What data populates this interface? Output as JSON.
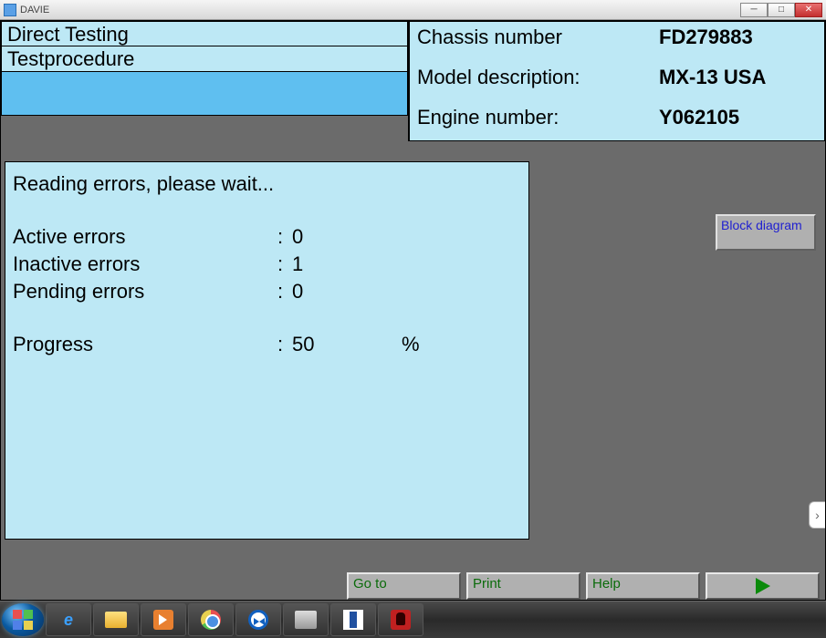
{
  "window": {
    "title": "DAVIE"
  },
  "header": {
    "left": {
      "line1": "Direct Testing",
      "line2": "Testprocedure"
    },
    "right": {
      "chassis_label": "Chassis number",
      "chassis_value": "FD279883",
      "model_label": "Model description:",
      "model_value": "MX-13 USA",
      "engine_label": "Engine number:",
      "engine_value": "Y062105"
    }
  },
  "status": {
    "heading": "Reading errors, please wait...",
    "rows": [
      {
        "label": "Active errors",
        "value": "0",
        "unit": ""
      },
      {
        "label": "Inactive errors",
        "value": "1",
        "unit": ""
      },
      {
        "label": "Pending errors",
        "value": "0",
        "unit": ""
      }
    ],
    "progress": {
      "label": "Progress",
      "value": "50",
      "unit": "%"
    }
  },
  "buttons": {
    "block_diagram": "Block diagram",
    "goto": "Go to",
    "print": "Print",
    "help": "Help"
  },
  "colors": {
    "panel_bg": "#bde8f5",
    "highlight_bg": "#5fbff0",
    "app_bg": "#6b6b6b",
    "btn_bg": "#b0b0b0",
    "btn_text_green": "#0a6b0a",
    "link_blue": "#2020d0"
  }
}
